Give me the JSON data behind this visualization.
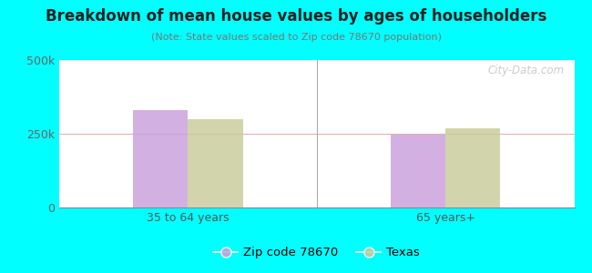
{
  "title": "Breakdown of mean house values by ages of householders",
  "subtitle": "(Note: State values scaled to Zip code 78670 population)",
  "categories": [
    "35 to 64 years",
    "65 years+"
  ],
  "zip_values": [
    330000,
    248000
  ],
  "texas_values": [
    300000,
    268000
  ],
  "zip_color": "#c9a0dc",
  "texas_color": "#c8cc9a",
  "ylim": [
    0,
    500000
  ],
  "ytick_labels": [
    "0",
    "250k",
    "500k"
  ],
  "legend_zip_label": "Zip code 78670",
  "legend_texas_label": "Texas",
  "background_color": "#00ffff",
  "watermark": "City-Data.com",
  "bar_width": 0.32,
  "group_positions": [
    0.75,
    2.25
  ]
}
